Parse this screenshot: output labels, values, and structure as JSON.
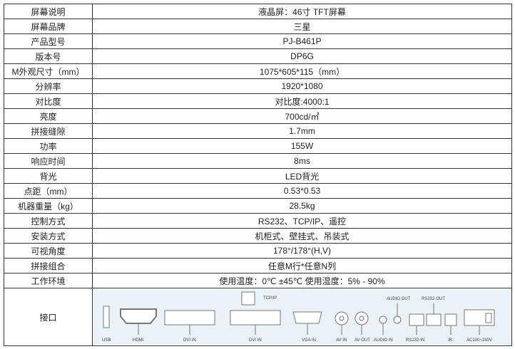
{
  "specs": [
    {
      "label": "屏幕说明",
      "value": "液晶屏：46寸 TFT屏幕"
    },
    {
      "label": "屏幕品牌",
      "value": "三星"
    },
    {
      "label": "产品型号",
      "value": "PJ-B461P"
    },
    {
      "label": "版本号",
      "value": "DP6G"
    },
    {
      "label": "M外观尺寸（mm）",
      "value": "1075*605*115（mm）"
    },
    {
      "label": "分辨率",
      "value": "1920*1080"
    },
    {
      "label": "对比度",
      "value": "对比度:4000:1"
    },
    {
      "label": "亮度",
      "value": "700cd/㎡"
    },
    {
      "label": "拼接缝隙",
      "value": "1.7mm"
    },
    {
      "label": "功率",
      "value": "155W"
    },
    {
      "label": "响应时间",
      "value": "8ms"
    },
    {
      "label": "背光",
      "value": "LED背光"
    },
    {
      "label": "点距（mm）",
      "value": "0.53*0.53"
    },
    {
      "label": "机器重量（kg）",
      "value": "28.5kg"
    },
    {
      "label": "控制方式",
      "value": "RS232、TCP/IP、遥控"
    },
    {
      "label": "安装方式",
      "value": "机柜式、壁挂式、吊装式"
    },
    {
      "label": "可视角度",
      "value": "178°/178°(H,V)"
    },
    {
      "label": "拼接组合",
      "value": "任意M行*任意N列"
    },
    {
      "label": "工作环境",
      "value": "使用温度：0℃ ±45℃ 使用湿度：5% - 90%"
    }
  ],
  "ports": {
    "label": "接口",
    "usb": "USB",
    "hdmi": "HDMI",
    "dvi1": "DVI IN",
    "dvi2": "DVI IN",
    "tcp": "TCP/IP",
    "vga": "VGA IN",
    "avin": "AV IN",
    "avout": "AV OUT",
    "audioin": "AUDIO IN",
    "audioout": "AUDIO OUT",
    "rs232in": "RS232-IN",
    "rs232out": "RS232-OUT",
    "ir": "IR",
    "ac": "AC100~240V"
  }
}
